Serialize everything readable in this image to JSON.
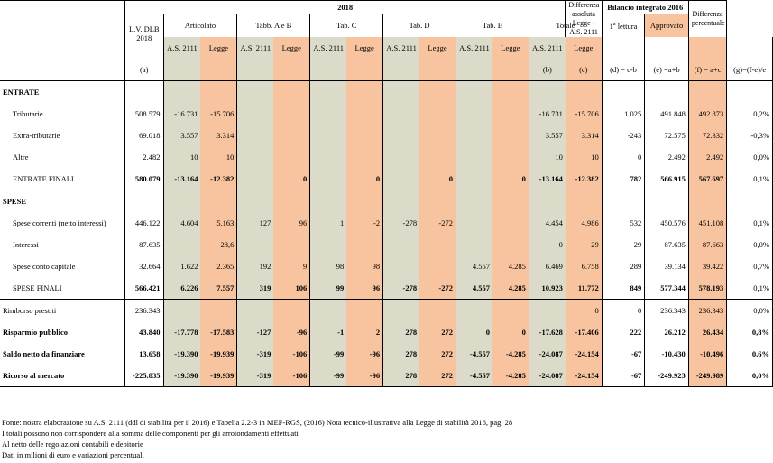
{
  "header": {
    "year_2018": "2018",
    "lv": "L.V. DLB 2018",
    "articolato": "Articolato",
    "tabb_ab": "Tabb. A e B",
    "tab_c": "Tab. C",
    "tab_d": "Tab. D",
    "tab_e": "Tab. E",
    "totale": "Totale",
    "differenza": "Differenza assoluta Legge - A.S. 2111",
    "bilancio": "Bilancio integrato 2016",
    "diff_perc": "Differenza percentuale",
    "as": "A.S. 2111",
    "legge": "Legge",
    "lettura_num": "1",
    "lettura_sup": "a",
    "lettura": " lettura",
    "approvato": "Approvato",
    "col_a": "(a)",
    "col_b": "(b)",
    "col_c": "(c)",
    "col_d": "(d) = c-b",
    "col_e": "(e) =a+b",
    "col_f": "(f) = a+c",
    "col_g": "(g)=(f-e)/e"
  },
  "sections": {
    "entrate": "ENTRATE",
    "spese": "SPESE"
  },
  "rows": [
    {
      "label": "Tributarie",
      "ind": true,
      "bold": false,
      "v": [
        "508.579",
        "-16.731",
        "-15.706",
        "",
        "",
        "",
        "",
        "",
        "",
        "",
        "",
        "-16.731",
        "-15.706",
        "1.025",
        "491.848",
        "492.873",
        "0,2%"
      ]
    },
    {
      "label": "Extra-tributarie",
      "ind": true,
      "bold": false,
      "v": [
        "69.018",
        "3.557",
        "3.314",
        "",
        "",
        "",
        "",
        "",
        "",
        "",
        "",
        "3.557",
        "3.314",
        "-243",
        "72.575",
        "72.332",
        "-0,3%"
      ]
    },
    {
      "label": "Altre",
      "ind": true,
      "bold": false,
      "v": [
        "2.482",
        "10",
        "10",
        "",
        "",
        "",
        "",
        "",
        "",
        "",
        "",
        "10",
        "10",
        "0",
        "2.492",
        "2.492",
        "0,0%"
      ]
    },
    {
      "label": "ENTRATE FINALI",
      "ind": true,
      "bold": false,
      "total": true,
      "v": [
        "580.079",
        "-13.164",
        "-12.382",
        "",
        "0",
        "",
        "0",
        "",
        "0",
        "",
        "0",
        "-13.164",
        "-12.382",
        "782",
        "566.915",
        "567.697",
        "0,1%"
      ]
    },
    {
      "label": "Spese correnti (netto interessi)",
      "ind": true,
      "bold": false,
      "v": [
        "446.122",
        "4.604",
        "5.163",
        "127",
        "96",
        "1",
        "-2",
        "-278",
        "-272",
        "",
        "",
        "4.454",
        "4.986",
        "532",
        "450.576",
        "451.108",
        "0,1%"
      ]
    },
    {
      "label": "Interessi",
      "ind": true,
      "bold": false,
      "v": [
        "87.635",
        "",
        "28,6",
        "",
        "",
        "",
        "",
        "",
        "",
        "",
        "",
        "0",
        "29",
        "29",
        "87.635",
        "87.663",
        "0,0%"
      ]
    },
    {
      "label": "Spese conto capitale",
      "ind": true,
      "bold": false,
      "v": [
        "32.664",
        "1.622",
        "2.365",
        "192",
        "9",
        "98",
        "98",
        "",
        "",
        "4.557",
        "4.285",
        "6.469",
        "6.758",
        "289",
        "39.134",
        "39.422",
        "0,7%"
      ]
    },
    {
      "label": "SPESE FINALI",
      "ind": true,
      "bold": false,
      "total": true,
      "v": [
        "566.421",
        "6.226",
        "7.557",
        "319",
        "106",
        "99",
        "96",
        "-278",
        "-272",
        "4.557",
        "4.285",
        "10.923",
        "11.772",
        "849",
        "577.344",
        "578.193",
        "0,1%"
      ]
    },
    {
      "label": "Rimborso prestiti",
      "ind": false,
      "bold": false,
      "v": [
        "236.343",
        "",
        "",
        "",
        "",
        "",
        "",
        "",
        "",
        "",
        "",
        "",
        "0",
        "0",
        "236.343",
        "236.343",
        "0,0%"
      ]
    },
    {
      "label": "Risparmio pubblico",
      "ind": false,
      "bold": true,
      "v": [
        "43.840",
        "-17.778",
        "-17.583",
        "-127",
        "-96",
        "-1",
        "2",
        "278",
        "272",
        "0",
        "0",
        "-17.628",
        "-17.406",
        "222",
        "26.212",
        "26.434",
        "0,8%"
      ]
    },
    {
      "label": "Saldo netto da finanziare",
      "ind": false,
      "bold": true,
      "v": [
        "13.658",
        "-19.390",
        "-19.939",
        "-319",
        "-106",
        "-99",
        "-96",
        "278",
        "272",
        "-4.557",
        "-4.285",
        "-24.087",
        "-24.154",
        "-67",
        "-10.430",
        "-10.496",
        "0,6%"
      ]
    },
    {
      "label": "Ricorso al mercato",
      "ind": false,
      "bold": true,
      "v": [
        "-225.835",
        "-19.390",
        "-19.939",
        "-319",
        "-106",
        "-99",
        "-96",
        "278",
        "272",
        "-4.557",
        "-4.285",
        "-24.087",
        "-24.154",
        "-67",
        "-249.923",
        "-249.989",
        "0,0%"
      ]
    }
  ],
  "notes": [
    "Fonte: nostra elaborazione su A.S. 2111 (ddl di stabilità per il 2016) e Tabella 2.2-3 in MEF-RGS, (2016) Nota tecnico-illustrativa alla Legge di stabilità 2016, pag. 28",
    "I totali possono non corrispondere alla somma delle componenti per gli arrotondamenti effettuati",
    "Al netto delle regolazioni contabili e debitorie",
    "Dati in milioni di euro e variazioni percentuali"
  ]
}
